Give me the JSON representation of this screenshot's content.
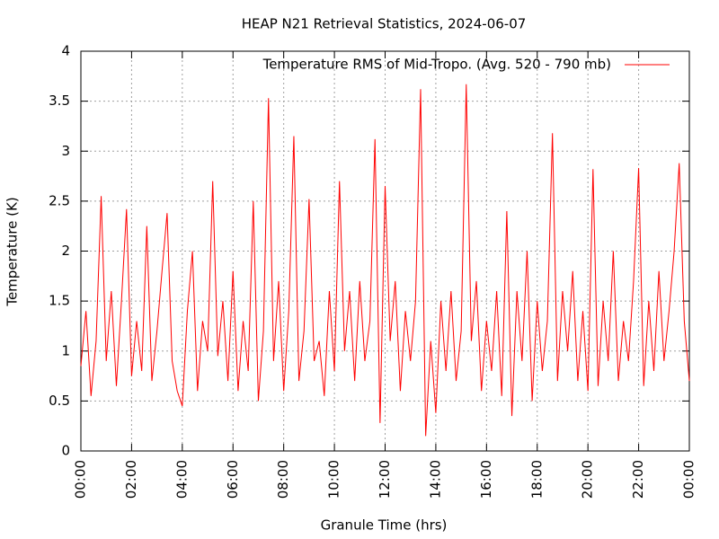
{
  "chart_data": {
    "type": "line",
    "title": "HEAP N21 Retrieval Statistics, 2024-06-07",
    "x_label": "Granule Time (hrs)",
    "y_label": "Temperature (K)",
    "xlim": [
      0,
      24
    ],
    "ylim": [
      0,
      4
    ],
    "xticks": [
      {
        "value": 0,
        "label": "00:00"
      },
      {
        "value": 2,
        "label": "02:00"
      },
      {
        "value": 4,
        "label": "04:00"
      },
      {
        "value": 6,
        "label": "06:00"
      },
      {
        "value": 8,
        "label": "08:00"
      },
      {
        "value": 10,
        "label": "10:00"
      },
      {
        "value": 12,
        "label": "12:00"
      },
      {
        "value": 14,
        "label": "14:00"
      },
      {
        "value": 16,
        "label": "16:00"
      },
      {
        "value": 18,
        "label": "18:00"
      },
      {
        "value": 20,
        "label": "20:00"
      },
      {
        "value": 22,
        "label": "22:00"
      },
      {
        "value": 24,
        "label": "00:00"
      }
    ],
    "yticks": [
      0,
      0.5,
      1,
      1.5,
      2,
      2.5,
      3,
      3.5,
      4
    ],
    "grid": true,
    "legend": "top-right",
    "x": [
      0,
      0.2,
      0.4,
      0.6,
      0.8,
      1,
      1.2,
      1.4,
      1.6,
      1.8,
      2,
      2.2,
      2.4,
      2.6,
      2.8,
      3,
      3.2,
      3.4,
      3.6,
      3.8,
      4,
      4.2,
      4.4,
      4.6,
      4.8,
      5,
      5.2,
      5.4,
      5.6,
      5.8,
      6,
      6.2,
      6.4,
      6.6,
      6.8,
      7,
      7.2,
      7.4,
      7.6,
      7.8,
      8,
      8.2,
      8.4,
      8.6,
      8.8,
      9,
      9.2,
      9.4,
      9.6,
      9.8,
      10,
      10.2,
      10.4,
      10.6,
      10.8,
      11,
      11.2,
      11.4,
      11.6,
      11.8,
      12,
      12.2,
      12.4,
      12.6,
      12.8,
      13,
      13.2,
      13.4,
      13.6,
      13.8,
      14,
      14.2,
      14.4,
      14.6,
      14.8,
      15,
      15.2,
      15.4,
      15.6,
      15.8,
      16,
      16.2,
      16.4,
      16.6,
      16.8,
      17,
      17.2,
      17.4,
      17.6,
      17.8,
      18,
      18.2,
      18.4,
      18.6,
      18.8,
      19,
      19.2,
      19.4,
      19.6,
      19.8,
      20,
      20.2,
      20.4,
      20.6,
      20.8,
      21,
      21.2,
      21.4,
      21.6,
      21.8,
      22,
      22.2,
      22.4,
      22.6,
      22.8,
      23,
      23.2,
      23.4,
      23.6,
      23.8,
      24
    ],
    "series": [
      {
        "name": "Temperature RMS of Mid-Tropo. (Avg. 520 - 790 mb)",
        "color": "#ff0000",
        "values": [
          0.85,
          1.4,
          0.55,
          1.1,
          2.55,
          0.9,
          1.6,
          0.65,
          1.5,
          2.42,
          0.75,
          1.3,
          0.8,
          2.25,
          0.7,
          1.2,
          1.8,
          2.38,
          0.9,
          0.6,
          0.45,
          1.4,
          2.0,
          0.6,
          1.3,
          1.0,
          2.7,
          0.95,
          1.5,
          0.7,
          1.8,
          0.6,
          1.3,
          0.8,
          2.5,
          0.5,
          1.2,
          3.53,
          0.9,
          1.7,
          0.6,
          1.4,
          3.15,
          0.7,
          1.2,
          2.52,
          0.9,
          1.1,
          0.55,
          1.6,
          0.8,
          2.7,
          1.0,
          1.6,
          0.7,
          1.7,
          0.9,
          1.3,
          3.12,
          0.28,
          2.65,
          1.1,
          1.7,
          0.6,
          1.4,
          0.9,
          1.5,
          3.62,
          0.15,
          1.1,
          0.38,
          1.5,
          0.8,
          1.6,
          0.7,
          1.2,
          3.67,
          1.1,
          1.7,
          0.6,
          1.3,
          0.8,
          1.6,
          0.55,
          2.4,
          0.35,
          1.6,
          0.9,
          2.0,
          0.5,
          1.5,
          0.8,
          1.3,
          3.18,
          0.7,
          1.6,
          1.0,
          1.8,
          0.7,
          1.4,
          0.6,
          2.82,
          0.65,
          1.5,
          0.9,
          2.0,
          0.7,
          1.3,
          0.9,
          1.7,
          2.83,
          0.65,
          1.5,
          0.8,
          1.8,
          0.9,
          1.4,
          2.0,
          2.88,
          1.3,
          0.7
        ]
      }
    ]
  }
}
